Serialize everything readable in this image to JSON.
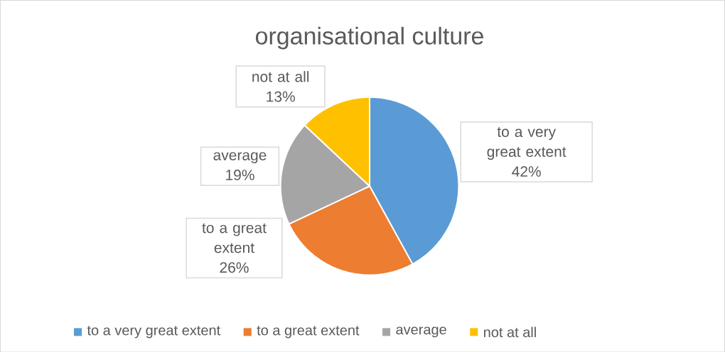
{
  "chart_data": {
    "type": "pie",
    "title": "organisational culture",
    "categories": [
      "to a very great extent",
      "to a great extent",
      "average",
      "not at all"
    ],
    "values": [
      42,
      26,
      19,
      13
    ],
    "value_labels": [
      "42%",
      "26%",
      "19%",
      "13%"
    ],
    "colors": [
      "#5b9bd5",
      "#ed7d31",
      "#a5a5a5",
      "#ffc000"
    ],
    "legend": "bottom"
  }
}
